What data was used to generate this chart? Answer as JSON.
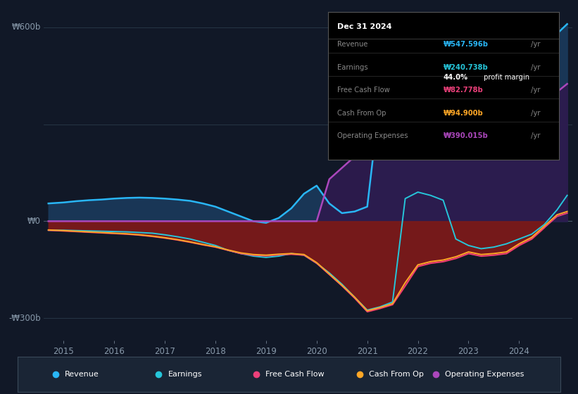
{
  "bg_color": "#111827",
  "plot_bg_color": "#111827",
  "ylabel_600": "₩600b",
  "ylabel_0": "₩0",
  "ylabel_neg300": "-₩300b",
  "legend": [
    {
      "label": "Revenue",
      "color": "#29b6f6"
    },
    {
      "label": "Earnings",
      "color": "#26c6da"
    },
    {
      "label": "Free Cash Flow",
      "color": "#ec407a"
    },
    {
      "label": "Cash From Op",
      "color": "#ffa726"
    },
    {
      "label": "Operating Expenses",
      "color": "#ab47bc"
    }
  ],
  "info_box": {
    "title": "Dec 31 2024",
    "rows": [
      {
        "label": "Revenue",
        "value": "₩547.596b",
        "value_color": "#29b6f6",
        "suffix": " /yr",
        "sub": null
      },
      {
        "label": "Earnings",
        "value": "₩240.738b",
        "value_color": "#26c6da",
        "suffix": " /yr",
        "sub": "44.0% profit margin"
      },
      {
        "label": "Free Cash Flow",
        "value": "₩82.778b",
        "value_color": "#ec407a",
        "suffix": " /yr",
        "sub": null
      },
      {
        "label": "Cash From Op",
        "value": "₩94.900b",
        "value_color": "#ffa726",
        "suffix": " /yr",
        "sub": null
      },
      {
        "label": "Operating Expenses",
        "value": "₩390.015b",
        "value_color": "#ab47bc",
        "suffix": " /yr",
        "sub": null
      }
    ]
  },
  "x_ticks": [
    2015,
    2016,
    2017,
    2018,
    2019,
    2020,
    2021,
    2022,
    2023,
    2024
  ],
  "years": [
    2014.7,
    2015.0,
    2015.25,
    2015.5,
    2015.75,
    2016.0,
    2016.25,
    2016.5,
    2016.75,
    2017.0,
    2017.25,
    2017.5,
    2017.75,
    2018.0,
    2018.25,
    2018.5,
    2018.75,
    2019.0,
    2019.25,
    2019.5,
    2019.75,
    2020.0,
    2020.25,
    2020.5,
    2020.75,
    2021.0,
    2021.25,
    2021.5,
    2021.75,
    2022.0,
    2022.25,
    2022.5,
    2022.75,
    2023.0,
    2023.25,
    2023.5,
    2023.75,
    2024.0,
    2024.25,
    2024.5,
    2024.75,
    2024.95
  ],
  "revenue": [
    55,
    58,
    62,
    65,
    67,
    70,
    72,
    73,
    72,
    70,
    67,
    63,
    55,
    45,
    30,
    15,
    0,
    -5,
    10,
    40,
    85,
    110,
    55,
    25,
    30,
    45,
    380,
    440,
    420,
    460,
    480,
    400,
    340,
    330,
    360,
    380,
    390,
    390,
    410,
    490,
    580,
    610
  ],
  "earnings": [
    -28,
    -28,
    -29,
    -30,
    -31,
    -32,
    -33,
    -35,
    -37,
    -42,
    -48,
    -55,
    -65,
    -75,
    -90,
    -100,
    -108,
    -112,
    -108,
    -100,
    -105,
    -130,
    -160,
    -195,
    -235,
    -275,
    -265,
    -250,
    70,
    90,
    80,
    65,
    -55,
    -75,
    -85,
    -80,
    -70,
    -55,
    -40,
    -10,
    35,
    80
  ],
  "free_cash_flow": [
    -28,
    -30,
    -32,
    -34,
    -36,
    -38,
    -40,
    -43,
    -47,
    -52,
    -58,
    -65,
    -73,
    -80,
    -90,
    -100,
    -105,
    -107,
    -104,
    -102,
    -105,
    -130,
    -165,
    -200,
    -238,
    -280,
    -270,
    -258,
    -200,
    -140,
    -130,
    -125,
    -115,
    -100,
    -108,
    -105,
    -100,
    -75,
    -55,
    -20,
    15,
    25
  ],
  "cash_from_op": [
    -27,
    -29,
    -31,
    -33,
    -35,
    -37,
    -39,
    -42,
    -46,
    -51,
    -57,
    -64,
    -72,
    -79,
    -89,
    -98,
    -103,
    -105,
    -102,
    -100,
    -103,
    -128,
    -163,
    -198,
    -235,
    -277,
    -267,
    -255,
    -190,
    -135,
    -125,
    -120,
    -110,
    -95,
    -103,
    -100,
    -95,
    -70,
    -50,
    -15,
    20,
    30
  ],
  "operating_expenses": [
    0,
    0,
    0,
    0,
    0,
    0,
    0,
    0,
    0,
    0,
    0,
    0,
    0,
    0,
    0,
    0,
    0,
    0,
    0,
    0,
    0,
    0,
    130,
    165,
    200,
    230,
    260,
    285,
    310,
    330,
    340,
    345,
    340,
    340,
    350,
    355,
    360,
    365,
    370,
    375,
    400,
    425
  ],
  "ylim": [
    -370,
    660
  ],
  "xlim": [
    2014.6,
    2025.05
  ],
  "fill_revenue_color": "#1a3a5c",
  "fill_opex_color": "#2d1b4e",
  "fill_fcf_color": "#7b1a1a"
}
